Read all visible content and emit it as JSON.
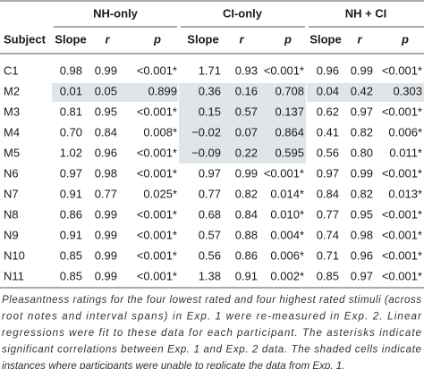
{
  "table": {
    "groups": [
      "NH-only",
      "CI-only",
      "NH + CI"
    ],
    "columns": [
      "Subject",
      "Slope",
      "r",
      "p",
      "Slope",
      "r",
      "p",
      "Slope",
      "r",
      "p"
    ],
    "rows": [
      [
        "C1",
        "0.98",
        "0.99",
        "<0.001*",
        "1.71",
        "0.93",
        "<0.001*",
        "0.96",
        "0.99",
        "<0.001*"
      ],
      [
        "M2",
        "0.01",
        "0.05",
        "0.899",
        "0.36",
        "0.16",
        "0.708",
        "0.04",
        "0.42",
        "0.303"
      ],
      [
        "M3",
        "0.81",
        "0.95",
        "<0.001*",
        "0.15",
        "0.57",
        "0.137",
        "0.62",
        "0.97",
        "<0.001*"
      ],
      [
        "M4",
        "0.70",
        "0.84",
        "0.008*",
        "−0.02",
        "0.07",
        "0.864",
        "0.41",
        "0.82",
        "0.006*"
      ],
      [
        "M5",
        "1.02",
        "0.96",
        "<0.001*",
        "−0.09",
        "0.22",
        "0.595",
        "0.56",
        "0.80",
        "0.011*"
      ],
      [
        "N6",
        "0.97",
        "0.98",
        "<0.001*",
        "0.97",
        "0.99",
        "<0.001*",
        "0.97",
        "0.99",
        "<0.001*"
      ],
      [
        "N7",
        "0.91",
        "0.77",
        "0.025*",
        "0.77",
        "0.82",
        "0.014*",
        "0.84",
        "0.82",
        "0.013*"
      ],
      [
        "N8",
        "0.86",
        "0.99",
        "<0.001*",
        "0.68",
        "0.84",
        "0.010*",
        "0.77",
        "0.95",
        "<0.001*"
      ],
      [
        "N9",
        "0.91",
        "0.99",
        "<0.001*",
        "0.57",
        "0.88",
        "0.004*",
        "0.74",
        "0.98",
        "<0.001*"
      ],
      [
        "N10",
        "0.85",
        "0.99",
        "<0.001*",
        "0.56",
        "0.86",
        "0.006*",
        "0.71",
        "0.96",
        "<0.001*"
      ],
      [
        "N11",
        "0.85",
        "0.99",
        "<0.001*",
        "1.38",
        "0.91",
        "0.002*",
        "0.85",
        "0.97",
        "<0.001*"
      ]
    ],
    "caption": [
      "Pleasantness ratings for the four lowest rated and four highest rated stimuli (across",
      "root notes and interval spans) in Exp. 1 were re-measured in Exp. 2. Linear",
      "regressions were fit to these data for each participant. The asterisks indicate",
      "significant correlations between Exp. 1 and Exp. 2 data. The shaded cells indicate",
      "instances where participants were unable to replicate the data from Exp. 1."
    ]
  }
}
